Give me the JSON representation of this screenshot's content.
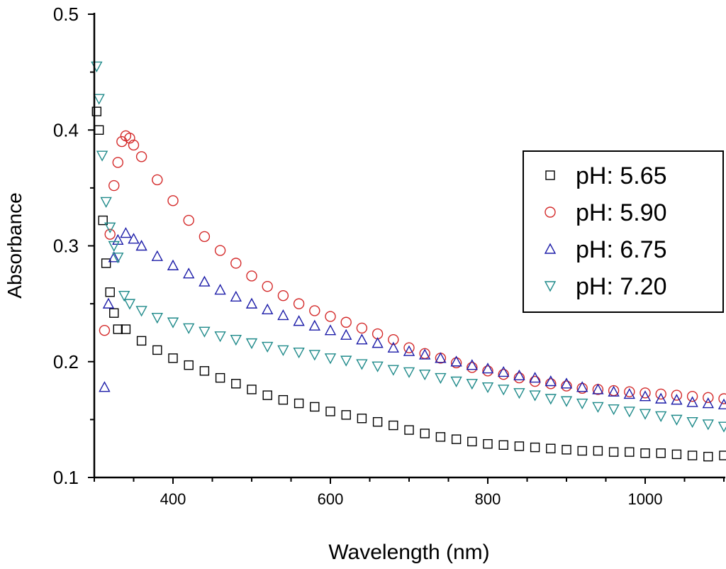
{
  "chart_data": {
    "type": "scatter",
    "title": "",
    "xlabel": "Wavelength (nm)",
    "ylabel": "Absorbance",
    "xlim": [
      300,
      1100
    ],
    "ylim": [
      0.1,
      0.5
    ],
    "xticks": [
      400,
      600,
      800,
      1000
    ],
    "xtick_labels": [
      "400",
      "600",
      "800",
      "1000"
    ],
    "yticks": [
      0.1,
      0.2,
      0.3,
      0.4,
      0.5
    ],
    "ytick_labels": [
      "0.1",
      "0.2",
      "0.3",
      "0.4",
      "0.5"
    ],
    "grid": false,
    "legend_position": "right",
    "series": [
      {
        "name": "pH: 5.65",
        "marker": "square",
        "color": "#000000",
        "x": [
          303,
          306,
          311,
          315,
          320,
          325,
          330,
          340,
          360,
          380,
          400,
          420,
          440,
          460,
          480,
          500,
          520,
          540,
          560,
          580,
          600,
          620,
          640,
          660,
          680,
          700,
          720,
          740,
          760,
          780,
          800,
          820,
          840,
          860,
          880,
          900,
          920,
          940,
          960,
          980,
          1000,
          1020,
          1040,
          1060,
          1080,
          1100
        ],
        "y": [
          0.416,
          0.4,
          0.322,
          0.285,
          0.26,
          0.242,
          0.228,
          0.228,
          0.218,
          0.21,
          0.203,
          0.197,
          0.192,
          0.186,
          0.181,
          0.176,
          0.171,
          0.167,
          0.164,
          0.161,
          0.157,
          0.154,
          0.151,
          0.148,
          0.145,
          0.141,
          0.138,
          0.135,
          0.133,
          0.131,
          0.129,
          0.128,
          0.127,
          0.126,
          0.125,
          0.124,
          0.123,
          0.123,
          0.122,
          0.122,
          0.121,
          0.121,
          0.12,
          0.119,
          0.118,
          0.119
        ]
      },
      {
        "name": "pH: 5.90",
        "marker": "circle",
        "color": "#d42a2a",
        "x": [
          313,
          320,
          325,
          330,
          335,
          340,
          345,
          350,
          360,
          380,
          400,
          420,
          440,
          460,
          480,
          500,
          520,
          540,
          560,
          580,
          600,
          620,
          640,
          660,
          680,
          700,
          720,
          740,
          760,
          780,
          800,
          820,
          840,
          860,
          880,
          900,
          920,
          940,
          960,
          980,
          1000,
          1020,
          1040,
          1060,
          1080,
          1100
        ],
        "y": [
          0.227,
          0.31,
          0.352,
          0.372,
          0.39,
          0.395,
          0.393,
          0.387,
          0.377,
          0.357,
          0.339,
          0.322,
          0.308,
          0.296,
          0.285,
          0.274,
          0.265,
          0.257,
          0.25,
          0.244,
          0.239,
          0.234,
          0.229,
          0.224,
          0.219,
          0.212,
          0.207,
          0.203,
          0.199,
          0.195,
          0.192,
          0.189,
          0.186,
          0.183,
          0.181,
          0.179,
          0.177,
          0.176,
          0.175,
          0.174,
          0.173,
          0.172,
          0.171,
          0.17,
          0.169,
          0.168
        ]
      },
      {
        "name": "pH: 6.75",
        "marker": "triangle-up",
        "color": "#1c1ca8",
        "x": [
          313,
          318,
          325,
          330,
          340,
          350,
          360,
          380,
          400,
          420,
          440,
          460,
          480,
          500,
          520,
          540,
          560,
          580,
          600,
          620,
          640,
          660,
          680,
          700,
          720,
          740,
          760,
          780,
          800,
          820,
          840,
          860,
          880,
          900,
          920,
          940,
          960,
          980,
          1000,
          1020,
          1040,
          1060,
          1080,
          1100
        ],
        "y": [
          0.178,
          0.25,
          0.29,
          0.305,
          0.311,
          0.306,
          0.3,
          0.291,
          0.283,
          0.276,
          0.269,
          0.262,
          0.256,
          0.25,
          0.245,
          0.24,
          0.235,
          0.231,
          0.227,
          0.223,
          0.219,
          0.216,
          0.212,
          0.209,
          0.206,
          0.203,
          0.2,
          0.197,
          0.194,
          0.191,
          0.188,
          0.186,
          0.183,
          0.181,
          0.178,
          0.176,
          0.174,
          0.172,
          0.17,
          0.168,
          0.167,
          0.165,
          0.164,
          0.163
        ]
      },
      {
        "name": "pH: 7.20",
        "marker": "triangle-down",
        "color": "#1f8a8a",
        "x": [
          303,
          306,
          310,
          315,
          320,
          325,
          330,
          338,
          345,
          360,
          380,
          400,
          420,
          440,
          460,
          480,
          500,
          520,
          540,
          560,
          580,
          600,
          620,
          640,
          660,
          680,
          700,
          720,
          740,
          760,
          780,
          800,
          820,
          840,
          860,
          880,
          900,
          920,
          940,
          960,
          980,
          1000,
          1020,
          1040,
          1060,
          1080,
          1100
        ],
        "y": [
          0.455,
          0.427,
          0.378,
          0.338,
          0.316,
          0.3,
          0.29,
          0.257,
          0.25,
          0.244,
          0.238,
          0.234,
          0.229,
          0.226,
          0.222,
          0.219,
          0.216,
          0.213,
          0.21,
          0.208,
          0.206,
          0.203,
          0.201,
          0.198,
          0.196,
          0.193,
          0.191,
          0.189,
          0.186,
          0.183,
          0.181,
          0.178,
          0.176,
          0.173,
          0.171,
          0.168,
          0.166,
          0.164,
          0.161,
          0.159,
          0.157,
          0.155,
          0.153,
          0.15,
          0.148,
          0.146,
          0.144
        ]
      }
    ]
  }
}
